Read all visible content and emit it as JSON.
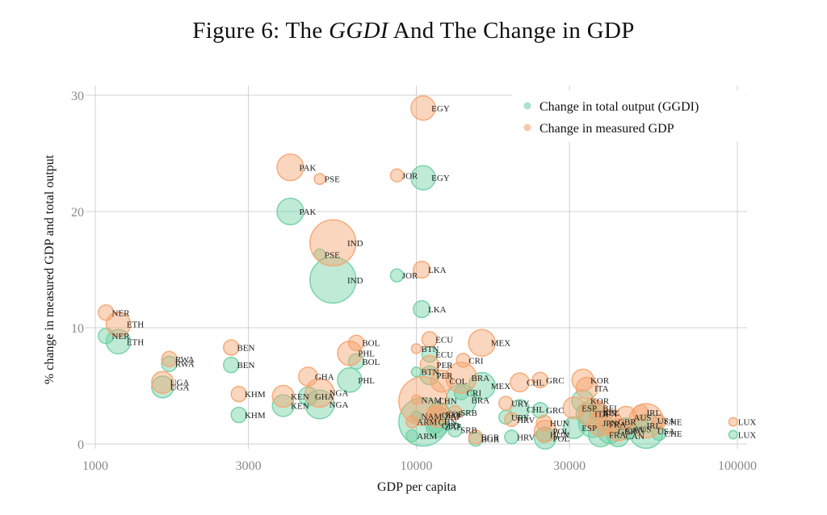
{
  "title": {
    "prefix": "Figure 6: The ",
    "italic": "GGDI",
    "suffix": " And The Change in GDP"
  },
  "chart_data": {
    "type": "scatter",
    "title": "Figure 6: The GGDI And The Change in GDP",
    "xlabel": "GDP per capita",
    "ylabel": "% change in measured GDP and total output",
    "xscale": "log",
    "xlim": [
      1000,
      100000
    ],
    "ylim": [
      0,
      30
    ],
    "xticks": [
      1000,
      3000,
      10000,
      30000,
      100000
    ],
    "xtick_labels": [
      "1000",
      "3000",
      "10000",
      "30000",
      "100000"
    ],
    "yticks": [
      0,
      10,
      20,
      30
    ],
    "ytick_labels": [
      "0",
      "10",
      "20",
      "30"
    ],
    "grid": true,
    "legend_position": "top-right",
    "marker_size_note": "bubble size proportional to country weight",
    "colors": {
      "ggdi": "#6fd0a4",
      "gdp": "#f7a46f"
    },
    "series": [
      {
        "name": "Change in total output (GGDI)",
        "key": "ggdi",
        "points": [
          {
            "label": "NER",
            "x": 1080,
            "y": 9.3,
            "size": 1
          },
          {
            "label": "ETH",
            "x": 1180,
            "y": 8.8,
            "size": 2.5
          },
          {
            "label": "RWA",
            "x": 1700,
            "y": 6.9,
            "size": 1
          },
          {
            "label": "UGA",
            "x": 1620,
            "y": 4.9,
            "size": 2
          },
          {
            "label": "BEN",
            "x": 2650,
            "y": 6.8,
            "size": 1
          },
          {
            "label": "KHM",
            "x": 2800,
            "y": 2.5,
            "size": 1
          },
          {
            "label": "KEN",
            "x": 3850,
            "y": 3.3,
            "size": 2
          },
          {
            "label": "GHA",
            "x": 4600,
            "y": 4.1,
            "size": 1.5
          },
          {
            "label": "NGA",
            "x": 5000,
            "y": 3.4,
            "size": 3.5
          },
          {
            "label": "PAK",
            "x": 4050,
            "y": 20.0,
            "size": 3
          },
          {
            "label": "PSE",
            "x": 5000,
            "y": 16.3,
            "size": 0.5
          },
          {
            "label": "IND",
            "x": 5500,
            "y": 14.1,
            "size": 9
          },
          {
            "label": "PHL",
            "x": 6200,
            "y": 5.5,
            "size": 2.5
          },
          {
            "label": "BOL",
            "x": 6500,
            "y": 7.1,
            "size": 1
          },
          {
            "label": "JOR",
            "x": 8700,
            "y": 14.5,
            "size": 0.7
          },
          {
            "label": "EGY",
            "x": 10500,
            "y": 22.9,
            "size": 2.5
          },
          {
            "label": "LKA",
            "x": 10400,
            "y": 11.6,
            "size": 1.2
          },
          {
            "label": "BTN",
            "x": 10000,
            "y": 6.2,
            "size": 0.4
          },
          {
            "label": "ECU",
            "x": 11000,
            "y": 7.7,
            "size": 1
          },
          {
            "label": "PER",
            "x": 11000,
            "y": 5.9,
            "size": 1.5
          },
          {
            "label": "NAM",
            "x": 10000,
            "y": 2.4,
            "size": 0.4
          },
          {
            "label": "ARM",
            "x": 9700,
            "y": 0.7,
            "size": 0.6
          },
          {
            "label": "CHN",
            "x": 10500,
            "y": 1.9,
            "size": 10
          },
          {
            "label": "GEO",
            "x": 11500,
            "y": 1.6,
            "size": 1
          },
          {
            "label": "ZAF",
            "x": 11600,
            "y": 1.5,
            "size": 2
          },
          {
            "label": "COL",
            "x": 11700,
            "y": 2.6,
            "size": 2
          },
          {
            "label": "SRB",
            "x": 13200,
            "y": 1.2,
            "size": 0.8
          },
          {
            "label": "CRI",
            "x": 13800,
            "y": 4.4,
            "size": 0.8
          },
          {
            "label": "BRA",
            "x": 13800,
            "y": 3.8,
            "size": 4
          },
          {
            "label": "MEX",
            "x": 16000,
            "y": 5.0,
            "size": 3
          },
          {
            "label": "BGR",
            "x": 15300,
            "y": 0.4,
            "size": 0.8
          },
          {
            "label": "URY",
            "x": 19000,
            "y": 2.3,
            "size": 0.8
          },
          {
            "label": "HRV",
            "x": 19800,
            "y": 0.6,
            "size": 0.8
          },
          {
            "label": "CHL",
            "x": 21000,
            "y": 3.0,
            "size": 1.5
          },
          {
            "label": "GRC",
            "x": 24300,
            "y": 2.9,
            "size": 1
          },
          {
            "label": "HUN",
            "x": 25000,
            "y": 0.8,
            "size": 1
          },
          {
            "label": "POL",
            "x": 25200,
            "y": 0.5,
            "size": 2
          },
          {
            "label": "ESP",
            "x": 31000,
            "y": 1.4,
            "size": 2
          },
          {
            "label": "KOR",
            "x": 33000,
            "y": 3.7,
            "size": 2
          },
          {
            "label": "ITA",
            "x": 34000,
            "y": 2.6,
            "size": 2
          },
          {
            "label": "JPN",
            "x": 35500,
            "y": 1.8,
            "size": 3.5
          },
          {
            "label": "BEL",
            "x": 36500,
            "y": 2.7,
            "size": 1
          },
          {
            "label": "FRA",
            "x": 37500,
            "y": 0.8,
            "size": 2.5
          },
          {
            "label": "GBR",
            "x": 40000,
            "y": 1.1,
            "size": 2.5
          },
          {
            "label": "CAN",
            "x": 42500,
            "y": 0.7,
            "size": 2
          },
          {
            "label": "AUS",
            "x": 45000,
            "y": 1.3,
            "size": 2
          },
          {
            "label": "IRL",
            "x": 50000,
            "y": 1.6,
            "size": 1
          },
          {
            "label": "USA",
            "x": 52000,
            "y": 1.1,
            "size": 5
          },
          {
            "label": "CHE",
            "x": 57000,
            "y": 0.9,
            "size": 0.8
          },
          {
            "label": "LUX",
            "x": 97000,
            "y": 0.8,
            "size": 0.3
          }
        ]
      },
      {
        "name": "Change in measured GDP",
        "key": "gdp",
        "points": [
          {
            "label": "NER",
            "x": 1080,
            "y": 11.3,
            "size": 1
          },
          {
            "label": "ETH",
            "x": 1180,
            "y": 10.3,
            "size": 2.5
          },
          {
            "label": "RWA",
            "x": 1700,
            "y": 7.3,
            "size": 1
          },
          {
            "label": "UGA",
            "x": 1620,
            "y": 5.3,
            "size": 2
          },
          {
            "label": "BEN",
            "x": 2650,
            "y": 8.3,
            "size": 1
          },
          {
            "label": "KHM",
            "x": 2800,
            "y": 4.3,
            "size": 1
          },
          {
            "label": "KEN",
            "x": 3850,
            "y": 4.1,
            "size": 2
          },
          {
            "label": "GHA",
            "x": 4600,
            "y": 5.8,
            "size": 1.5
          },
          {
            "label": "NGA",
            "x": 5000,
            "y": 4.4,
            "size": 3.5
          },
          {
            "label": "PAK",
            "x": 4050,
            "y": 23.8,
            "size": 3
          },
          {
            "label": "PSE",
            "x": 5000,
            "y": 22.8,
            "size": 0.5
          },
          {
            "label": "IND",
            "x": 5500,
            "y": 17.3,
            "size": 9
          },
          {
            "label": "PHL",
            "x": 6200,
            "y": 7.8,
            "size": 2.5
          },
          {
            "label": "BOL",
            "x": 6500,
            "y": 8.7,
            "size": 1
          },
          {
            "label": "JOR",
            "x": 8700,
            "y": 23.1,
            "size": 0.7
          },
          {
            "label": "EGY",
            "x": 10500,
            "y": 28.9,
            "size": 2.5
          },
          {
            "label": "LKA",
            "x": 10400,
            "y": 15.0,
            "size": 1.2
          },
          {
            "label": "BTN",
            "x": 10000,
            "y": 8.2,
            "size": 0.4
          },
          {
            "label": "ECU",
            "x": 11000,
            "y": 9.0,
            "size": 1
          },
          {
            "label": "PER",
            "x": 11000,
            "y": 6.8,
            "size": 1.5
          },
          {
            "label": "NAM",
            "x": 10000,
            "y": 3.8,
            "size": 0.4
          },
          {
            "label": "ARM",
            "x": 9700,
            "y": 1.9,
            "size": 0.6
          },
          {
            "label": "CHN",
            "x": 10500,
            "y": 3.7,
            "size": 10
          },
          {
            "label": "GEO",
            "x": 11500,
            "y": 2.5,
            "size": 1
          },
          {
            "label": "ZAF",
            "x": 11600,
            "y": 2.4,
            "size": 2
          },
          {
            "label": "COL",
            "x": 12000,
            "y": 5.4,
            "size": 2
          },
          {
            "label": "SRB",
            "x": 13200,
            "y": 2.7,
            "size": 0.8
          },
          {
            "label": "CRI",
            "x": 14000,
            "y": 7.2,
            "size": 0.8
          },
          {
            "label": "BRA",
            "x": 13800,
            "y": 5.7,
            "size": 4
          },
          {
            "label": "MEX",
            "x": 16000,
            "y": 8.7,
            "size": 3
          },
          {
            "label": "BGR",
            "x": 15300,
            "y": 0.6,
            "size": 0.8
          },
          {
            "label": "URY",
            "x": 19000,
            "y": 3.5,
            "size": 0.8
          },
          {
            "label": "HRV",
            "x": 19800,
            "y": 2.1,
            "size": 0.8
          },
          {
            "label": "CHL",
            "x": 21000,
            "y": 5.3,
            "size": 1.5
          },
          {
            "label": "GRC",
            "x": 24300,
            "y": 5.5,
            "size": 1
          },
          {
            "label": "HUN",
            "x": 25000,
            "y": 1.8,
            "size": 1
          },
          {
            "label": "POL",
            "x": 25200,
            "y": 1.1,
            "size": 2
          },
          {
            "label": "ESP",
            "x": 31000,
            "y": 3.1,
            "size": 2
          },
          {
            "label": "KOR",
            "x": 33000,
            "y": 5.5,
            "size": 2
          },
          {
            "label": "ITA",
            "x": 34000,
            "y": 4.8,
            "size": 2
          },
          {
            "label": "JPN",
            "x": 35500,
            "y": 2.6,
            "size": 3.5
          },
          {
            "label": "BEL",
            "x": 36500,
            "y": 3.1,
            "size": 1
          },
          {
            "label": "FRA",
            "x": 37500,
            "y": 1.7,
            "size": 2.5
          },
          {
            "label": "GBR",
            "x": 40000,
            "y": 1.9,
            "size": 2.5
          },
          {
            "label": "CAN",
            "x": 42500,
            "y": 1.2,
            "size": 2
          },
          {
            "label": "AUS",
            "x": 45000,
            "y": 2.3,
            "size": 2
          },
          {
            "label": "IRL",
            "x": 50000,
            "y": 2.7,
            "size": 1
          },
          {
            "label": "USA",
            "x": 52000,
            "y": 2.0,
            "size": 5
          },
          {
            "label": "CHE",
            "x": 57000,
            "y": 1.9,
            "size": 0.8
          },
          {
            "label": "LUX",
            "x": 97000,
            "y": 1.9,
            "size": 0.3
          }
        ]
      }
    ]
  }
}
